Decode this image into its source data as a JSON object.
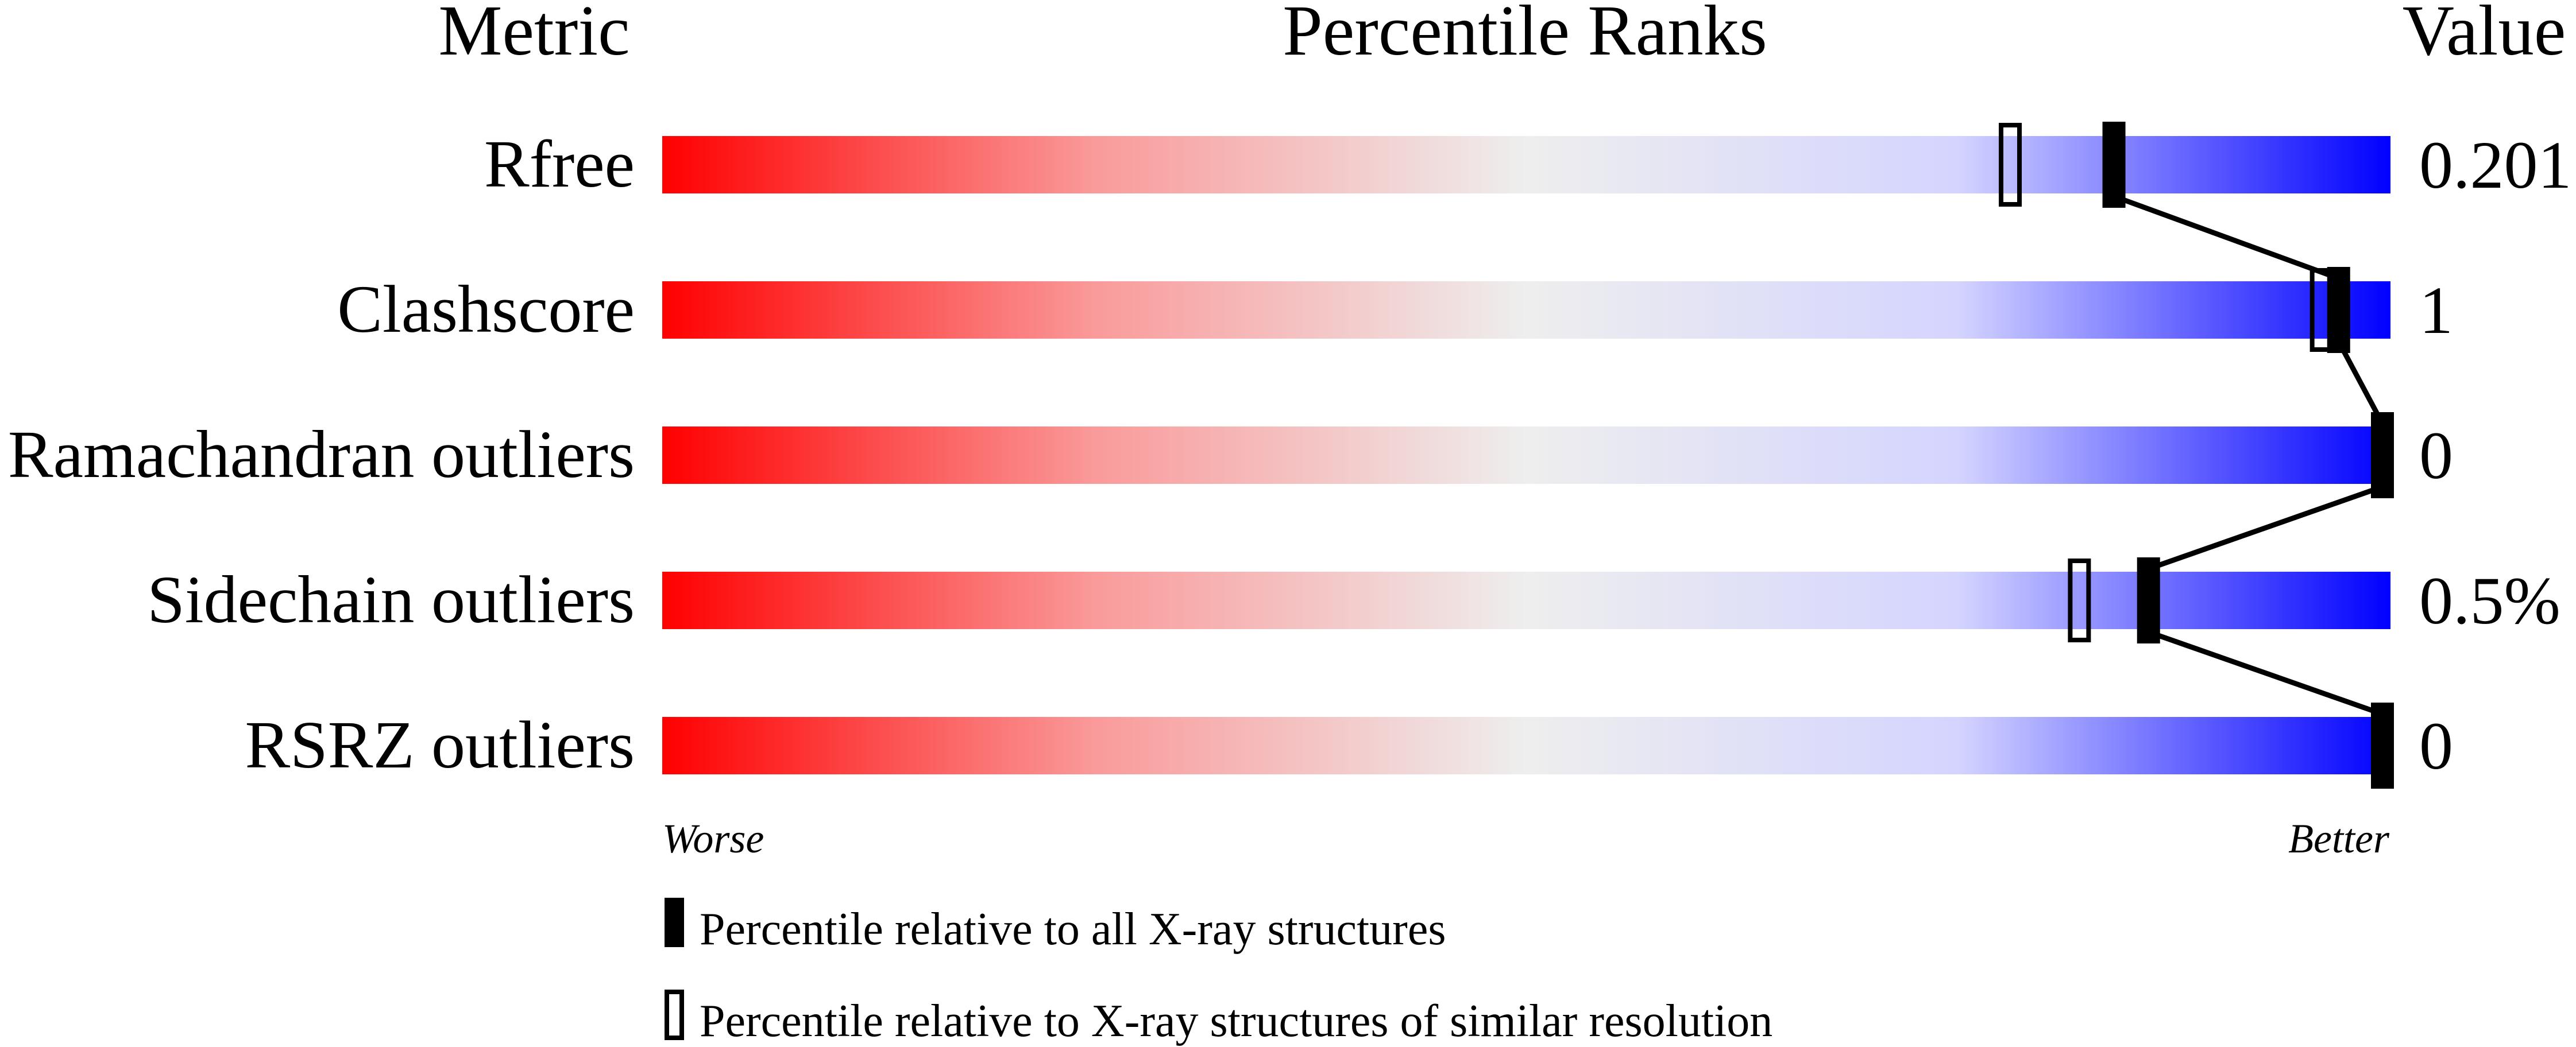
{
  "chart_data": {
    "type": "percentile-slider",
    "headers": {
      "metric": "Metric",
      "ranks": "Percentile Ranks",
      "value": "Value"
    },
    "xlim": [
      0,
      100
    ],
    "axis_labels": {
      "left": "Worse",
      "right": "Better"
    },
    "metrics": [
      {
        "name": "Rfree",
        "value": "0.201",
        "percentile_all": 84,
        "percentile_similar": 78
      },
      {
        "name": "Clashscore",
        "value": "1",
        "percentile_all": 97,
        "percentile_similar": 96
      },
      {
        "name": "Ramachandran outliers",
        "value": "0",
        "percentile_all": 100,
        "percentile_similar": 100
      },
      {
        "name": "Sidechain outliers",
        "value": "0.5%",
        "percentile_all": 86,
        "percentile_similar": 82
      },
      {
        "name": "RSRZ outliers",
        "value": "0",
        "percentile_all": 100,
        "percentile_similar": null
      }
    ],
    "legend": {
      "filled": "Percentile relative to all X-ray structures",
      "open": "Percentile relative to X-ray structures of similar resolution"
    },
    "colors": {
      "worse": "#ff0000",
      "middle": "#eeeeee",
      "better": "#0000ff"
    }
  }
}
